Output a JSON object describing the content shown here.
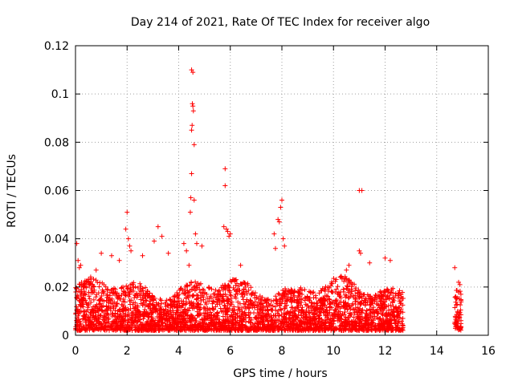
{
  "chart_data": {
    "type": "scatter",
    "title": "Day 214 of 2021, Rate Of TEC Index for receiver algo",
    "xlabel": "GPS time / hours",
    "ylabel": "ROTI / TECUs",
    "xlim": [
      0,
      16
    ],
    "ylim": [
      0,
      0.12
    ],
    "xticks": [
      0,
      2,
      4,
      6,
      8,
      10,
      12,
      14,
      16
    ],
    "yticks": [
      0,
      0.02,
      0.04,
      0.06,
      0.08,
      0.1,
      0.12
    ],
    "xtick_labels": [
      "0",
      "2",
      "4",
      "6",
      "8",
      "10",
      "12",
      "14",
      "16"
    ],
    "ytick_labels": [
      "0",
      "0.02",
      "0.04",
      "0.06",
      "0.08",
      "0.1",
      "0.12"
    ],
    "grid": true,
    "marker": "+",
    "color": "#ff0000",
    "dense_band": {
      "segments": [
        {
          "x_start": 0.0,
          "x_end": 12.7,
          "y_low": 0.002,
          "y_high": 0.025
        },
        {
          "x_start": 14.7,
          "x_end": 14.95,
          "y_low": 0.002,
          "y_high": 0.022
        }
      ]
    },
    "series": [
      {
        "name": "ROTI",
        "points": [
          [
            0.05,
            0.038
          ],
          [
            0.1,
            0.031
          ],
          [
            0.15,
            0.028
          ],
          [
            0.2,
            0.029
          ],
          [
            0.8,
            0.027
          ],
          [
            1.0,
            0.034
          ],
          [
            1.4,
            0.033
          ],
          [
            1.7,
            0.031
          ],
          [
            1.95,
            0.044
          ],
          [
            2.0,
            0.051
          ],
          [
            2.05,
            0.04
          ],
          [
            2.1,
            0.037
          ],
          [
            2.15,
            0.035
          ],
          [
            2.6,
            0.033
          ],
          [
            3.05,
            0.039
          ],
          [
            3.2,
            0.045
          ],
          [
            3.35,
            0.041
          ],
          [
            3.6,
            0.034
          ],
          [
            4.2,
            0.038
          ],
          [
            4.3,
            0.035
          ],
          [
            4.4,
            0.029
          ],
          [
            4.45,
            0.051
          ],
          [
            4.47,
            0.057
          ],
          [
            4.5,
            0.067
          ],
          [
            4.5,
            0.085
          ],
          [
            4.52,
            0.087
          ],
          [
            4.53,
            0.096
          ],
          [
            4.55,
            0.095
          ],
          [
            4.57,
            0.093
          ],
          [
            4.5,
            0.11
          ],
          [
            4.55,
            0.109
          ],
          [
            4.6,
            0.079
          ],
          [
            4.6,
            0.056
          ],
          [
            4.65,
            0.042
          ],
          [
            4.7,
            0.038
          ],
          [
            4.9,
            0.037
          ],
          [
            5.75,
            0.045
          ],
          [
            5.8,
            0.069
          ],
          [
            5.8,
            0.062
          ],
          [
            5.85,
            0.044
          ],
          [
            5.9,
            0.043
          ],
          [
            5.95,
            0.041
          ],
          [
            6.0,
            0.042
          ],
          [
            6.4,
            0.029
          ],
          [
            7.7,
            0.042
          ],
          [
            7.75,
            0.036
          ],
          [
            7.85,
            0.048
          ],
          [
            7.9,
            0.047
          ],
          [
            7.95,
            0.053
          ],
          [
            8.0,
            0.056
          ],
          [
            8.05,
            0.04
          ],
          [
            8.1,
            0.037
          ],
          [
            10.5,
            0.027
          ],
          [
            10.6,
            0.029
          ],
          [
            11.0,
            0.035
          ],
          [
            11.05,
            0.034
          ],
          [
            11.0,
            0.06
          ],
          [
            11.1,
            0.06
          ],
          [
            11.4,
            0.03
          ],
          [
            12.0,
            0.032
          ],
          [
            12.2,
            0.031
          ],
          [
            14.7,
            0.028
          ],
          [
            14.85,
            0.022
          ],
          [
            14.9,
            0.021
          ]
        ]
      }
    ]
  }
}
